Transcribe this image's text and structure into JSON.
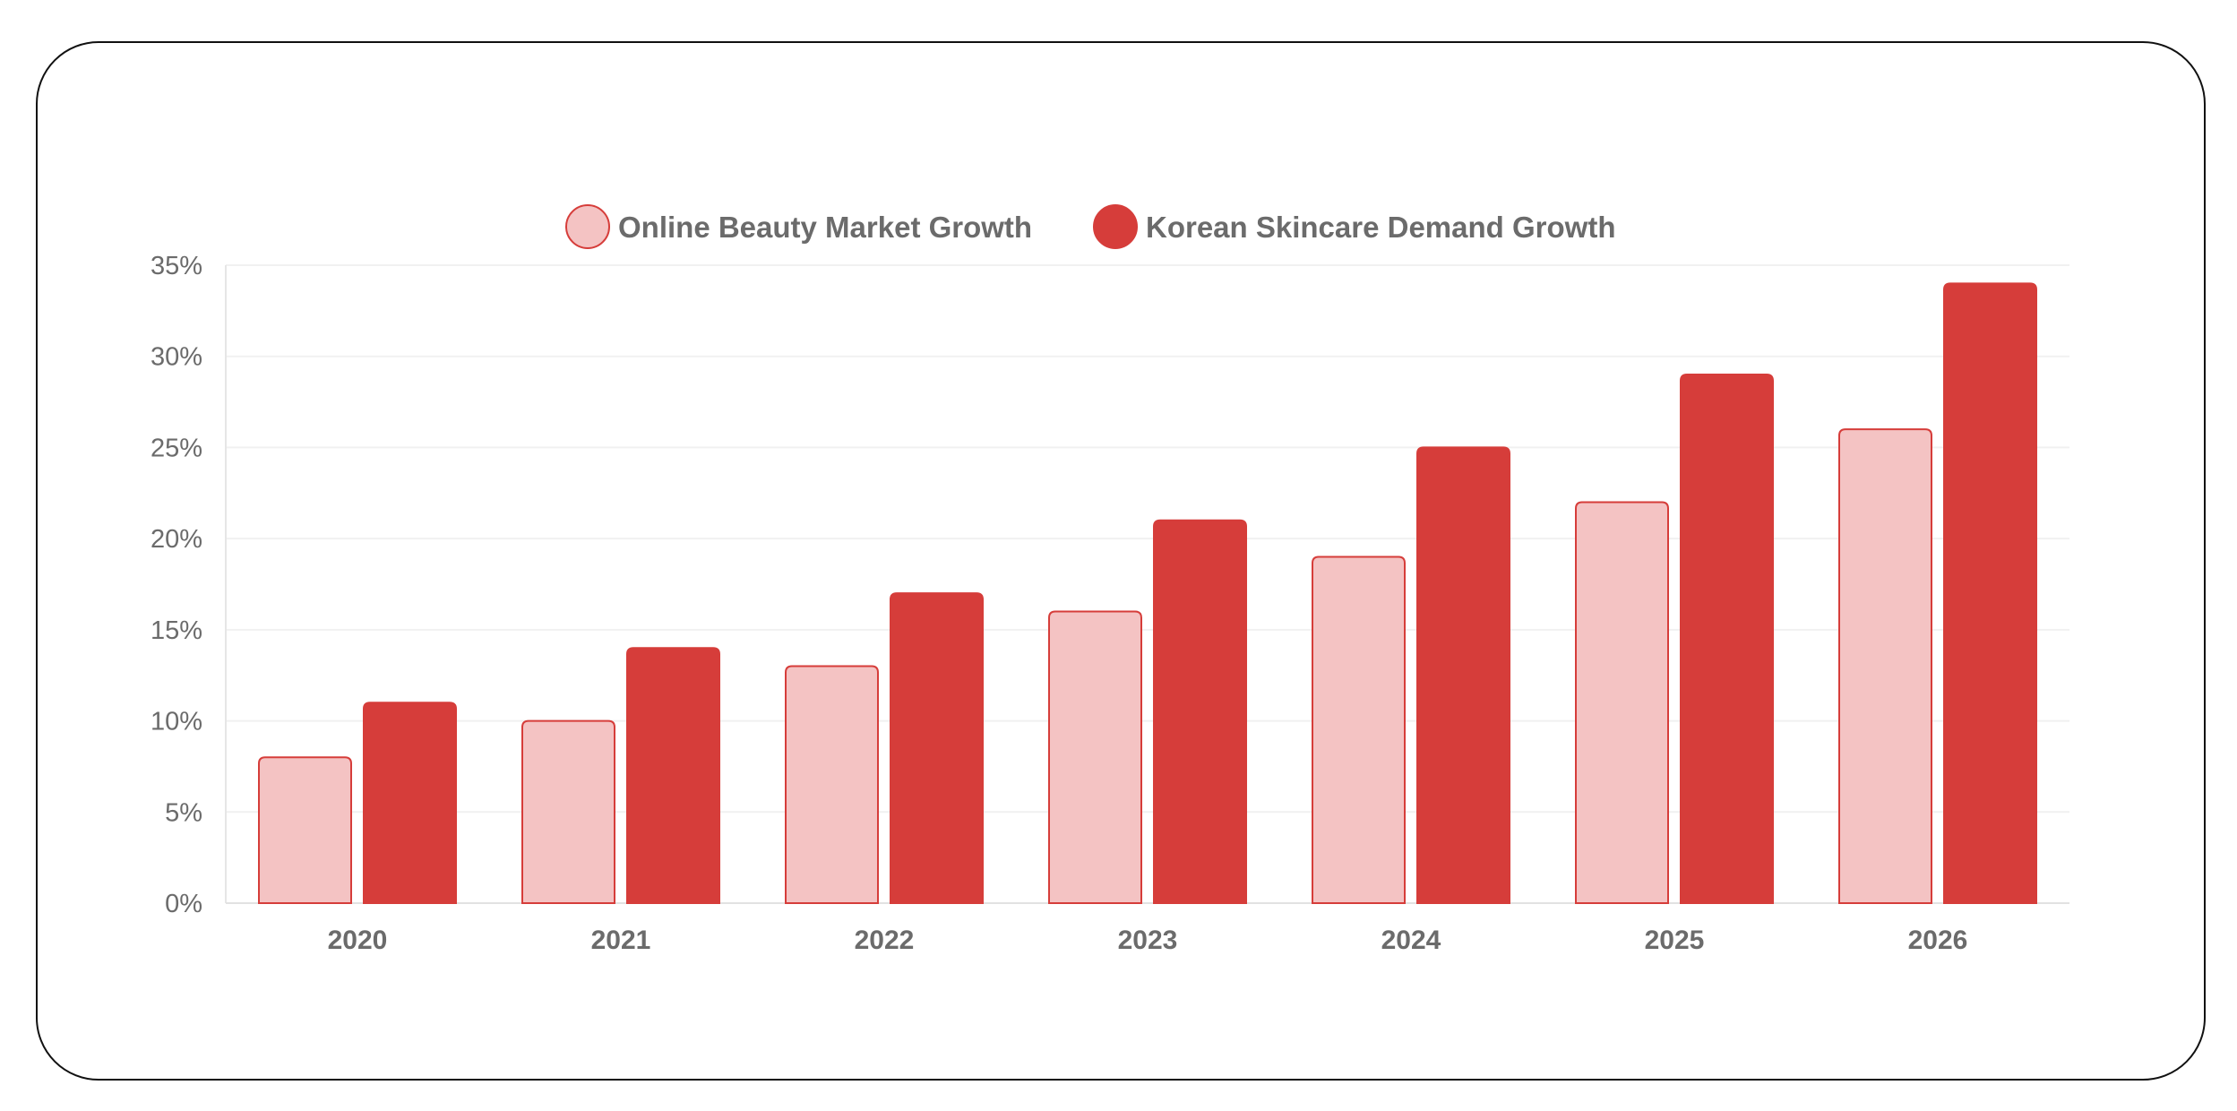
{
  "chart_data": {
    "type": "bar",
    "categories": [
      "2020",
      "2021",
      "2022",
      "2023",
      "2024",
      "2025",
      "2026"
    ],
    "series": [
      {
        "name": "Online Beauty Market Growth",
        "values": [
          8,
          10,
          13,
          16,
          19,
          22,
          26
        ],
        "fill": "#f4c3c3",
        "stroke": "#d63d3a"
      },
      {
        "name": "Korean Skincare Demand Growth",
        "values": [
          11,
          14,
          17,
          21,
          25,
          29,
          34
        ],
        "fill": "#d63d3a",
        "stroke": "#d63d3a"
      }
    ],
    "title": "",
    "xlabel": "",
    "ylabel": "",
    "ylim": [
      0,
      35
    ],
    "yticks": [
      0,
      5,
      10,
      15,
      20,
      25,
      30,
      35
    ],
    "ytick_labels": [
      "0%",
      "5%",
      "10%",
      "15%",
      "20%",
      "25%",
      "30%",
      "35%"
    ],
    "grid": true,
    "legend_position": "top-center"
  }
}
